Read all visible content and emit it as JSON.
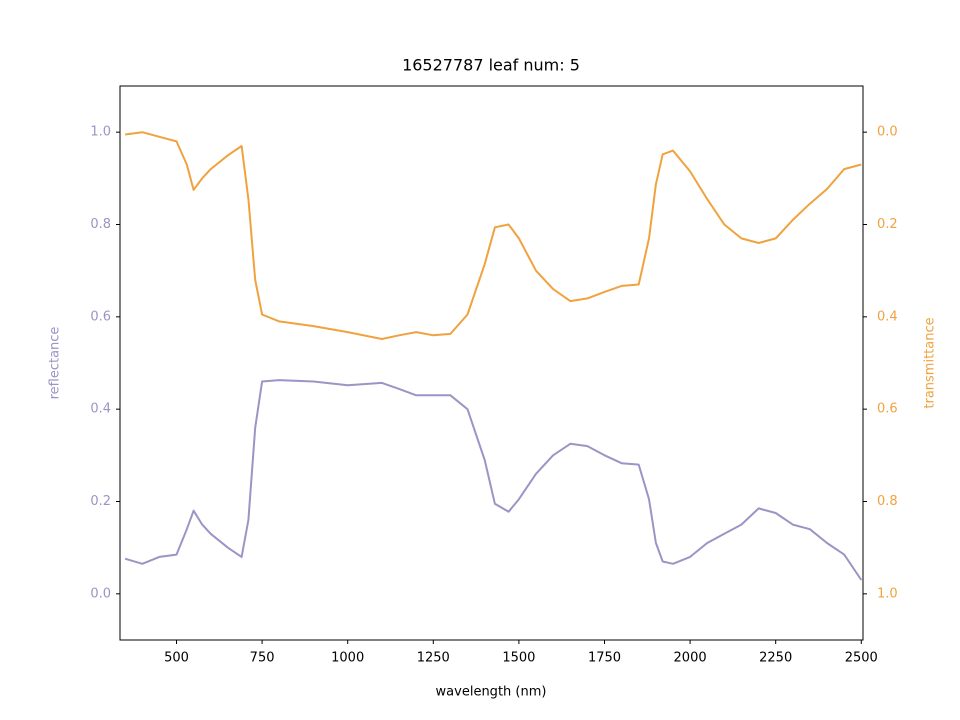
{
  "chart_data": {
    "type": "line",
    "title": "16527787 leaf num: 5",
    "xlabel": "wavelength (nm)",
    "ylabel": "reflectance",
    "y2label": "transmittance",
    "x": [
      350,
      400,
      450,
      500,
      530,
      550,
      575,
      600,
      650,
      690,
      710,
      730,
      750,
      800,
      900,
      1000,
      1100,
      1150,
      1200,
      1250,
      1300,
      1350,
      1400,
      1430,
      1470,
      1500,
      1550,
      1600,
      1650,
      1700,
      1750,
      1800,
      1850,
      1880,
      1900,
      1920,
      1950,
      2000,
      2050,
      2100,
      2150,
      2200,
      2250,
      2300,
      2350,
      2400,
      2450,
      2500
    ],
    "series": [
      {
        "name": "reflectance",
        "color": "#9b94c5",
        "axis": "y",
        "values": [
          0.076,
          0.065,
          0.08,
          0.085,
          0.14,
          0.18,
          0.15,
          0.13,
          0.1,
          0.08,
          0.16,
          0.36,
          0.46,
          0.463,
          0.46,
          0.452,
          0.457,
          0.444,
          0.43,
          0.43,
          0.43,
          0.4,
          0.29,
          0.195,
          0.178,
          0.205,
          0.26,
          0.3,
          0.325,
          0.32,
          0.3,
          0.283,
          0.28,
          0.205,
          0.11,
          0.07,
          0.065,
          0.08,
          0.11,
          0.13,
          0.15,
          0.185,
          0.175,
          0.15,
          0.14,
          0.11,
          0.085,
          0.03
        ]
      },
      {
        "name": "transmittance",
        "color": "#f0a23f",
        "axis": "y2",
        "values": [
          0.005,
          0.0,
          0.01,
          0.02,
          0.07,
          0.125,
          0.1,
          0.08,
          0.05,
          0.03,
          0.145,
          0.32,
          0.395,
          0.41,
          0.42,
          0.433,
          0.448,
          0.44,
          0.433,
          0.44,
          0.437,
          0.395,
          0.286,
          0.206,
          0.2,
          0.23,
          0.3,
          0.34,
          0.366,
          0.36,
          0.346,
          0.333,
          0.33,
          0.23,
          0.113,
          0.048,
          0.04,
          0.085,
          0.145,
          0.2,
          0.23,
          0.24,
          0.23,
          0.19,
          0.155,
          0.123,
          0.08,
          0.07
        ]
      }
    ],
    "xlim": [
      335,
      2505
    ],
    "xticks": [
      500,
      750,
      1000,
      1250,
      1500,
      1750,
      2000,
      2250,
      2500
    ],
    "ylim": [
      -0.1,
      1.1
    ],
    "yticks": [
      {
        "value": 0,
        "label": "0.0"
      },
      0.2,
      0.4,
      0.6,
      0.8,
      {
        "value": 1,
        "label": "1.0"
      }
    ],
    "y2lim": [
      1.1,
      -0.1
    ],
    "y2ticks": [
      {
        "value": 0,
        "label": "0.0"
      },
      0.2,
      0.4,
      0.6,
      0.8,
      {
        "value": 1,
        "label": "1.0"
      }
    ],
    "grid": false
  }
}
